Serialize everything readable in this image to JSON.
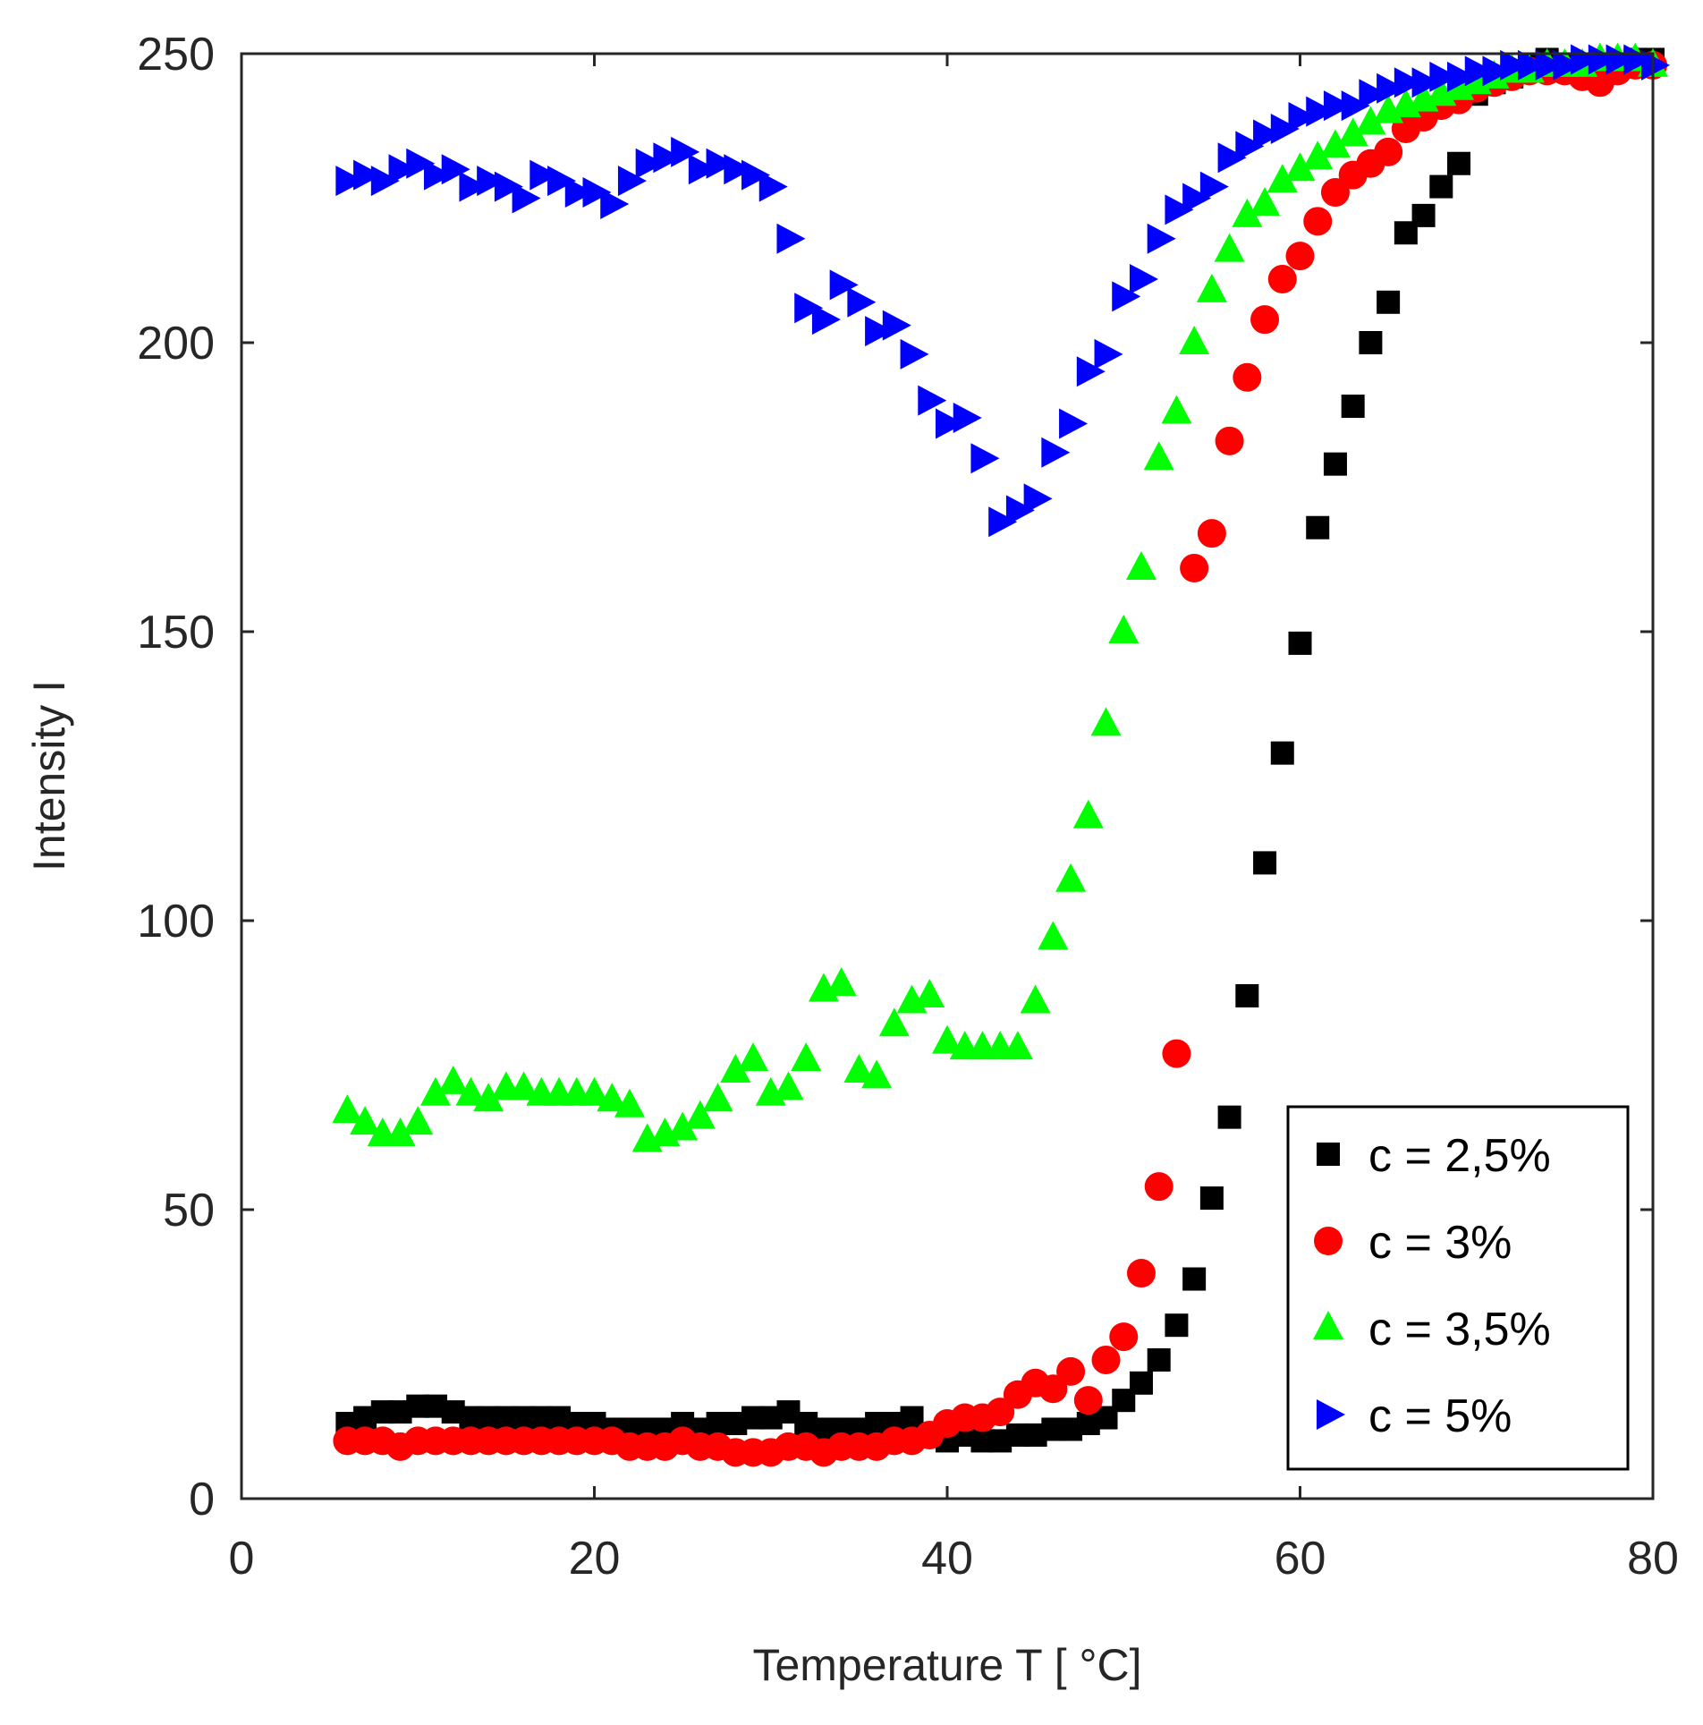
{
  "chart_data": {
    "type": "scatter",
    "title": "",
    "xlabel": "Temperature T [ °C]",
    "ylabel": "Intensity I",
    "xlim": [
      0,
      80
    ],
    "ylim": [
      0,
      250
    ],
    "xticks": [
      "0",
      "20",
      "40",
      "60",
      "80"
    ],
    "yticks": [
      "0",
      "50",
      "100",
      "150",
      "200",
      "250"
    ],
    "grid": false,
    "legend_position": "bottom-right",
    "series": [
      {
        "name": "c = 2,5%",
        "color": "#000000",
        "marker": "square",
        "x": [
          6,
          7,
          8,
          9,
          10,
          11,
          12,
          13,
          14,
          15,
          16,
          17,
          18,
          19,
          20,
          21,
          22,
          23,
          24,
          25,
          26,
          27,
          28,
          29,
          30,
          31,
          32,
          33,
          34,
          35,
          36,
          37,
          38,
          39,
          40,
          41,
          42,
          43,
          44,
          45,
          46,
          47,
          48,
          49,
          50,
          51,
          52,
          53,
          54,
          55,
          56,
          57,
          58,
          59,
          60,
          61,
          62,
          63,
          64,
          65,
          66,
          67,
          68,
          69,
          70,
          71,
          72,
          73,
          74,
          75,
          76,
          77,
          78,
          79,
          80
        ],
        "y": [
          13,
          14,
          15,
          15,
          16,
          16,
          15,
          14,
          14,
          14,
          14,
          14,
          14,
          13,
          13,
          12,
          12,
          12,
          12,
          13,
          12,
          13,
          13,
          14,
          14,
          15,
          13,
          12,
          12,
          12,
          13,
          13,
          14,
          11,
          10,
          11,
          10,
          10,
          11,
          11,
          12,
          12,
          13,
          14,
          17,
          20,
          24,
          30,
          38,
          52,
          66,
          87,
          110,
          129,
          148,
          168,
          179,
          189,
          200,
          207,
          219,
          222,
          227,
          231,
          243,
          245,
          246,
          248,
          249,
          248,
          247,
          248,
          248,
          249,
          249
        ]
      },
      {
        "name": "c = 3%",
        "color": "#ff0000",
        "marker": "circle",
        "x": [
          6,
          7,
          8,
          9,
          10,
          11,
          12,
          13,
          14,
          15,
          16,
          17,
          18,
          19,
          20,
          21,
          22,
          23,
          24,
          25,
          26,
          27,
          28,
          29,
          30,
          31,
          32,
          33,
          34,
          35,
          36,
          37,
          38,
          39,
          40,
          41,
          42,
          43,
          44,
          45,
          46,
          47,
          48,
          49,
          50,
          51,
          52,
          53,
          54,
          55,
          56,
          57,
          58,
          59,
          60,
          61,
          62,
          63,
          64,
          65,
          66,
          67,
          68,
          69,
          70,
          71,
          72,
          73,
          74,
          75,
          76,
          77,
          78,
          79,
          80
        ],
        "y": [
          10,
          10,
          10,
          9,
          10,
          10,
          10,
          10,
          10,
          10,
          10,
          10,
          10,
          10,
          10,
          10,
          9,
          9,
          9,
          10,
          9,
          9,
          8,
          8,
          8,
          9,
          9,
          8,
          9,
          9,
          9,
          10,
          10,
          11,
          13,
          14,
          14,
          15,
          18,
          20,
          19,
          22,
          17,
          24,
          28,
          39,
          54,
          77,
          161,
          167,
          183,
          194,
          204,
          211,
          215,
          221,
          226,
          229,
          231,
          233,
          237,
          239,
          241,
          242,
          244,
          245,
          246,
          247,
          247,
          247,
          246,
          245,
          247,
          248,
          248
        ]
      },
      {
        "name": "c = 3,5%",
        "color": "#00ff00",
        "marker": "triangle-up",
        "x": [
          6,
          7,
          8,
          9,
          10,
          11,
          12,
          13,
          14,
          15,
          16,
          17,
          18,
          19,
          20,
          21,
          22,
          23,
          24,
          25,
          26,
          27,
          28,
          29,
          30,
          31,
          32,
          33,
          34,
          35,
          36,
          37,
          38,
          39,
          40,
          41,
          42,
          43,
          44,
          45,
          46,
          47,
          48,
          49,
          50,
          51,
          52,
          53,
          54,
          55,
          56,
          57,
          58,
          59,
          60,
          61,
          62,
          63,
          64,
          65,
          66,
          67,
          68,
          69,
          70,
          71,
          72,
          73,
          74,
          75,
          76,
          77,
          78,
          79,
          80
        ],
        "y": [
          67,
          65,
          63,
          63,
          65,
          70,
          72,
          70,
          69,
          71,
          71,
          70,
          70,
          70,
          70,
          69,
          68,
          62,
          63,
          64,
          66,
          69,
          74,
          76,
          70,
          71,
          76,
          88,
          89,
          74,
          73,
          82,
          86,
          87,
          79,
          78,
          78,
          78,
          78,
          86,
          97,
          107,
          118,
          134,
          150,
          161,
          180,
          188,
          200,
          209,
          216,
          222,
          224,
          228,
          230,
          232,
          234,
          236,
          238,
          240,
          241,
          242,
          243,
          244,
          245,
          246,
          247,
          247,
          248,
          248,
          248,
          249,
          249,
          249,
          248
        ]
      },
      {
        "name": "c = 5%",
        "color": "#0000ff",
        "marker": "triangle-right",
        "x": [
          6,
          7,
          8,
          9,
          10,
          11,
          12,
          13,
          14,
          15,
          16,
          17,
          18,
          19,
          20,
          21,
          22,
          23,
          24,
          25,
          26,
          27,
          28,
          29,
          30,
          31,
          32,
          33,
          34,
          35,
          36,
          37,
          38,
          39,
          40,
          41,
          42,
          43,
          44,
          45,
          46,
          47,
          48,
          49,
          50,
          51,
          52,
          53,
          54,
          55,
          56,
          57,
          58,
          59,
          60,
          61,
          62,
          63,
          64,
          65,
          66,
          67,
          68,
          69,
          70,
          71,
          72,
          73,
          74,
          75,
          76,
          77,
          78,
          79,
          80
        ],
        "y": [
          228,
          229,
          228,
          230,
          231,
          229,
          230,
          227,
          228,
          227,
          225,
          229,
          228,
          226,
          226,
          224,
          228,
          231,
          232,
          233,
          230,
          231,
          230,
          229,
          227,
          218,
          206,
          204,
          210,
          207,
          202,
          203,
          198,
          190,
          186,
          187,
          180,
          169,
          171,
          173,
          181,
          186,
          195,
          198,
          208,
          211,
          218,
          223,
          225,
          227,
          232,
          234,
          236,
          237,
          239,
          240,
          241,
          241,
          243,
          244,
          245,
          245,
          246,
          246,
          247,
          247,
          248,
          248,
          248,
          248,
          249,
          249,
          249,
          249,
          248
        ]
      }
    ]
  }
}
